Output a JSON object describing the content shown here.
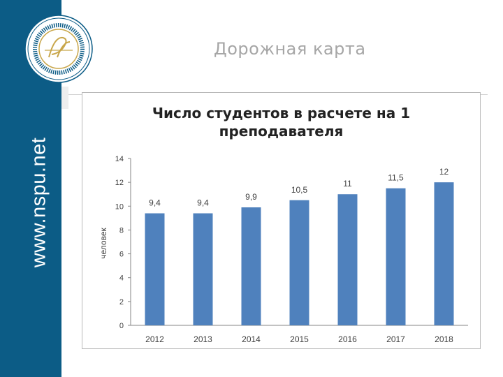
{
  "sidebar": {
    "url": "www.nspu.net"
  },
  "slide": {
    "title": "Дорожная карта"
  },
  "colors": {
    "sidebar": "#0c5c86",
    "bar": "#4f81bd",
    "title": "#a6a6a6"
  },
  "chart_data": {
    "type": "bar",
    "title_lines": [
      "Число студентов в расчете на 1",
      "преподавателя"
    ],
    "categories": [
      "2012",
      "2013",
      "2014",
      "2015",
      "2016",
      "2017",
      "2018"
    ],
    "values": [
      9.4,
      9.4,
      9.9,
      10.5,
      11,
      11.5,
      12
    ],
    "data_labels": [
      "9,4",
      "9,4",
      "9,9",
      "10,5",
      "11",
      "11,5",
      "12"
    ],
    "ylabel": "человек",
    "ylim": [
      0,
      14
    ],
    "yticks": [
      0,
      2,
      4,
      6,
      8,
      10,
      12,
      14
    ],
    "grid": false
  }
}
